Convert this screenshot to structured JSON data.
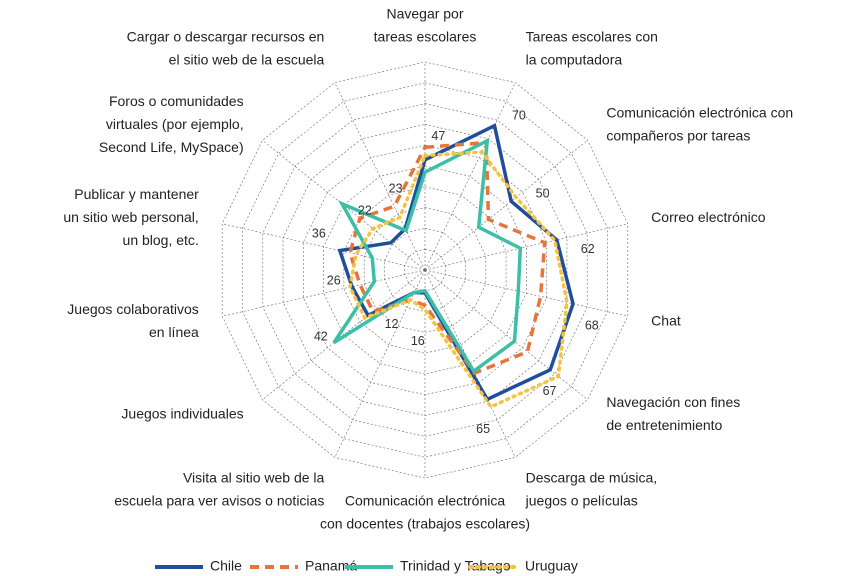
{
  "chart_data": {
    "type": "radar",
    "categories": [
      [
        "Navegar por",
        "tareas escolares"
      ],
      [
        "Tareas escolares con",
        "la computadora"
      ],
      [
        "Comunicación electrónica con",
        "compañeros por tareas"
      ],
      [
        "Correo electrónico"
      ],
      [
        "Chat"
      ],
      [
        "Navegación con fines",
        "de entretenimiento"
      ],
      [
        "Descarga de música,",
        "juegos o películas"
      ],
      [
        "Comunicación electrónica",
        "con docentes (trabajos escolares)"
      ],
      [
        "Visita al sitio web de la",
        "escuela para ver avisos o noticias"
      ],
      [
        "Juegos individuales"
      ],
      [
        "Juegos colaborativos",
        "en línea"
      ],
      [
        "Publicar y mantener",
        "un sitio web personal,",
        "un blog, etc."
      ],
      [
        "Foros o comunidades",
        "virtuales (por ejemplo,",
        "Second Life, MySpace)"
      ],
      [
        "Cargar o descargar recursos en",
        "el sitio web de la escuela"
      ]
    ],
    "annotations": [
      47,
      70,
      50,
      62,
      68,
      67,
      65,
      16,
      12,
      42,
      26,
      36,
      22,
      23
    ],
    "rlim": [
      0,
      100
    ],
    "rticks": [
      10,
      20,
      30,
      40,
      50,
      60,
      70,
      80,
      90,
      100
    ],
    "grid": true,
    "legend": "bottom",
    "series": [
      {
        "name": "Chile",
        "color": "#1f4e9c",
        "style": "solid",
        "values": [
          53,
          77,
          53,
          65,
          73,
          77,
          69,
          11,
          12,
          35,
          36,
          42,
          21,
          22
        ]
      },
      {
        "name": "Panamá",
        "color": "#e8743b",
        "style": "dashed",
        "values": [
          59,
          68,
          39,
          59,
          57,
          63,
          55,
          17,
          16,
          32,
          32,
          37,
          40,
          34
        ]
      },
      {
        "name": "Trinidad y Tabago",
        "color": "#3bbfa6",
        "style": "solid",
        "values": [
          47,
          69,
          33,
          47,
          46,
          55,
          54,
          10,
          12,
          56,
          25,
          26,
          51,
          21
        ]
      },
      {
        "name": "Uruguay",
        "color": "#f6c341",
        "style": "dotted",
        "values": [
          55,
          63,
          56,
          64,
          70,
          82,
          73,
          19,
          16,
          37,
          37,
          34,
          32,
          28
        ]
      }
    ]
  }
}
